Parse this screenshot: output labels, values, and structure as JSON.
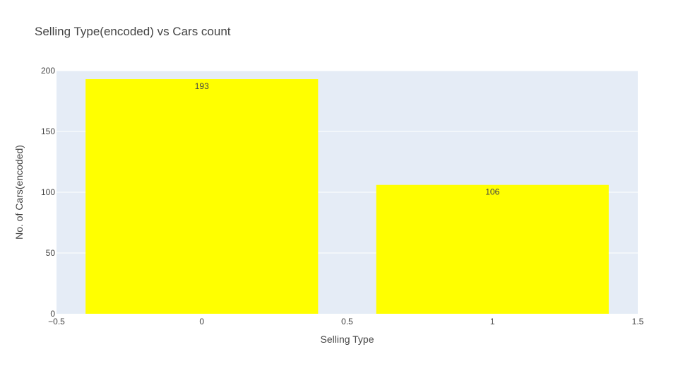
{
  "chart_data": {
    "type": "bar",
    "title": "Selling Type(encoded) vs Cars count",
    "xlabel": "Selling Type",
    "ylabel": "No. of Cars(encoded)",
    "x": [
      0,
      1
    ],
    "values": [
      193,
      106
    ],
    "labels": [
      "193",
      "106"
    ],
    "bar_width": 0.8,
    "xlim": [
      -0.5,
      1.5
    ],
    "ylim": [
      0,
      200
    ],
    "x_ticks": [
      -0.5,
      0,
      0.5,
      1,
      1.5
    ],
    "x_tick_labels": [
      "−0.5",
      "0",
      "0.5",
      "1",
      "1.5"
    ],
    "y_ticks": [
      0,
      50,
      100,
      150,
      200
    ],
    "y_tick_labels": [
      "0",
      "50",
      "100",
      "150",
      "200"
    ],
    "bar_color": "#ffff00",
    "plot_background": "#e5ecf6",
    "grid_color": "#ffffff",
    "grid": true
  }
}
